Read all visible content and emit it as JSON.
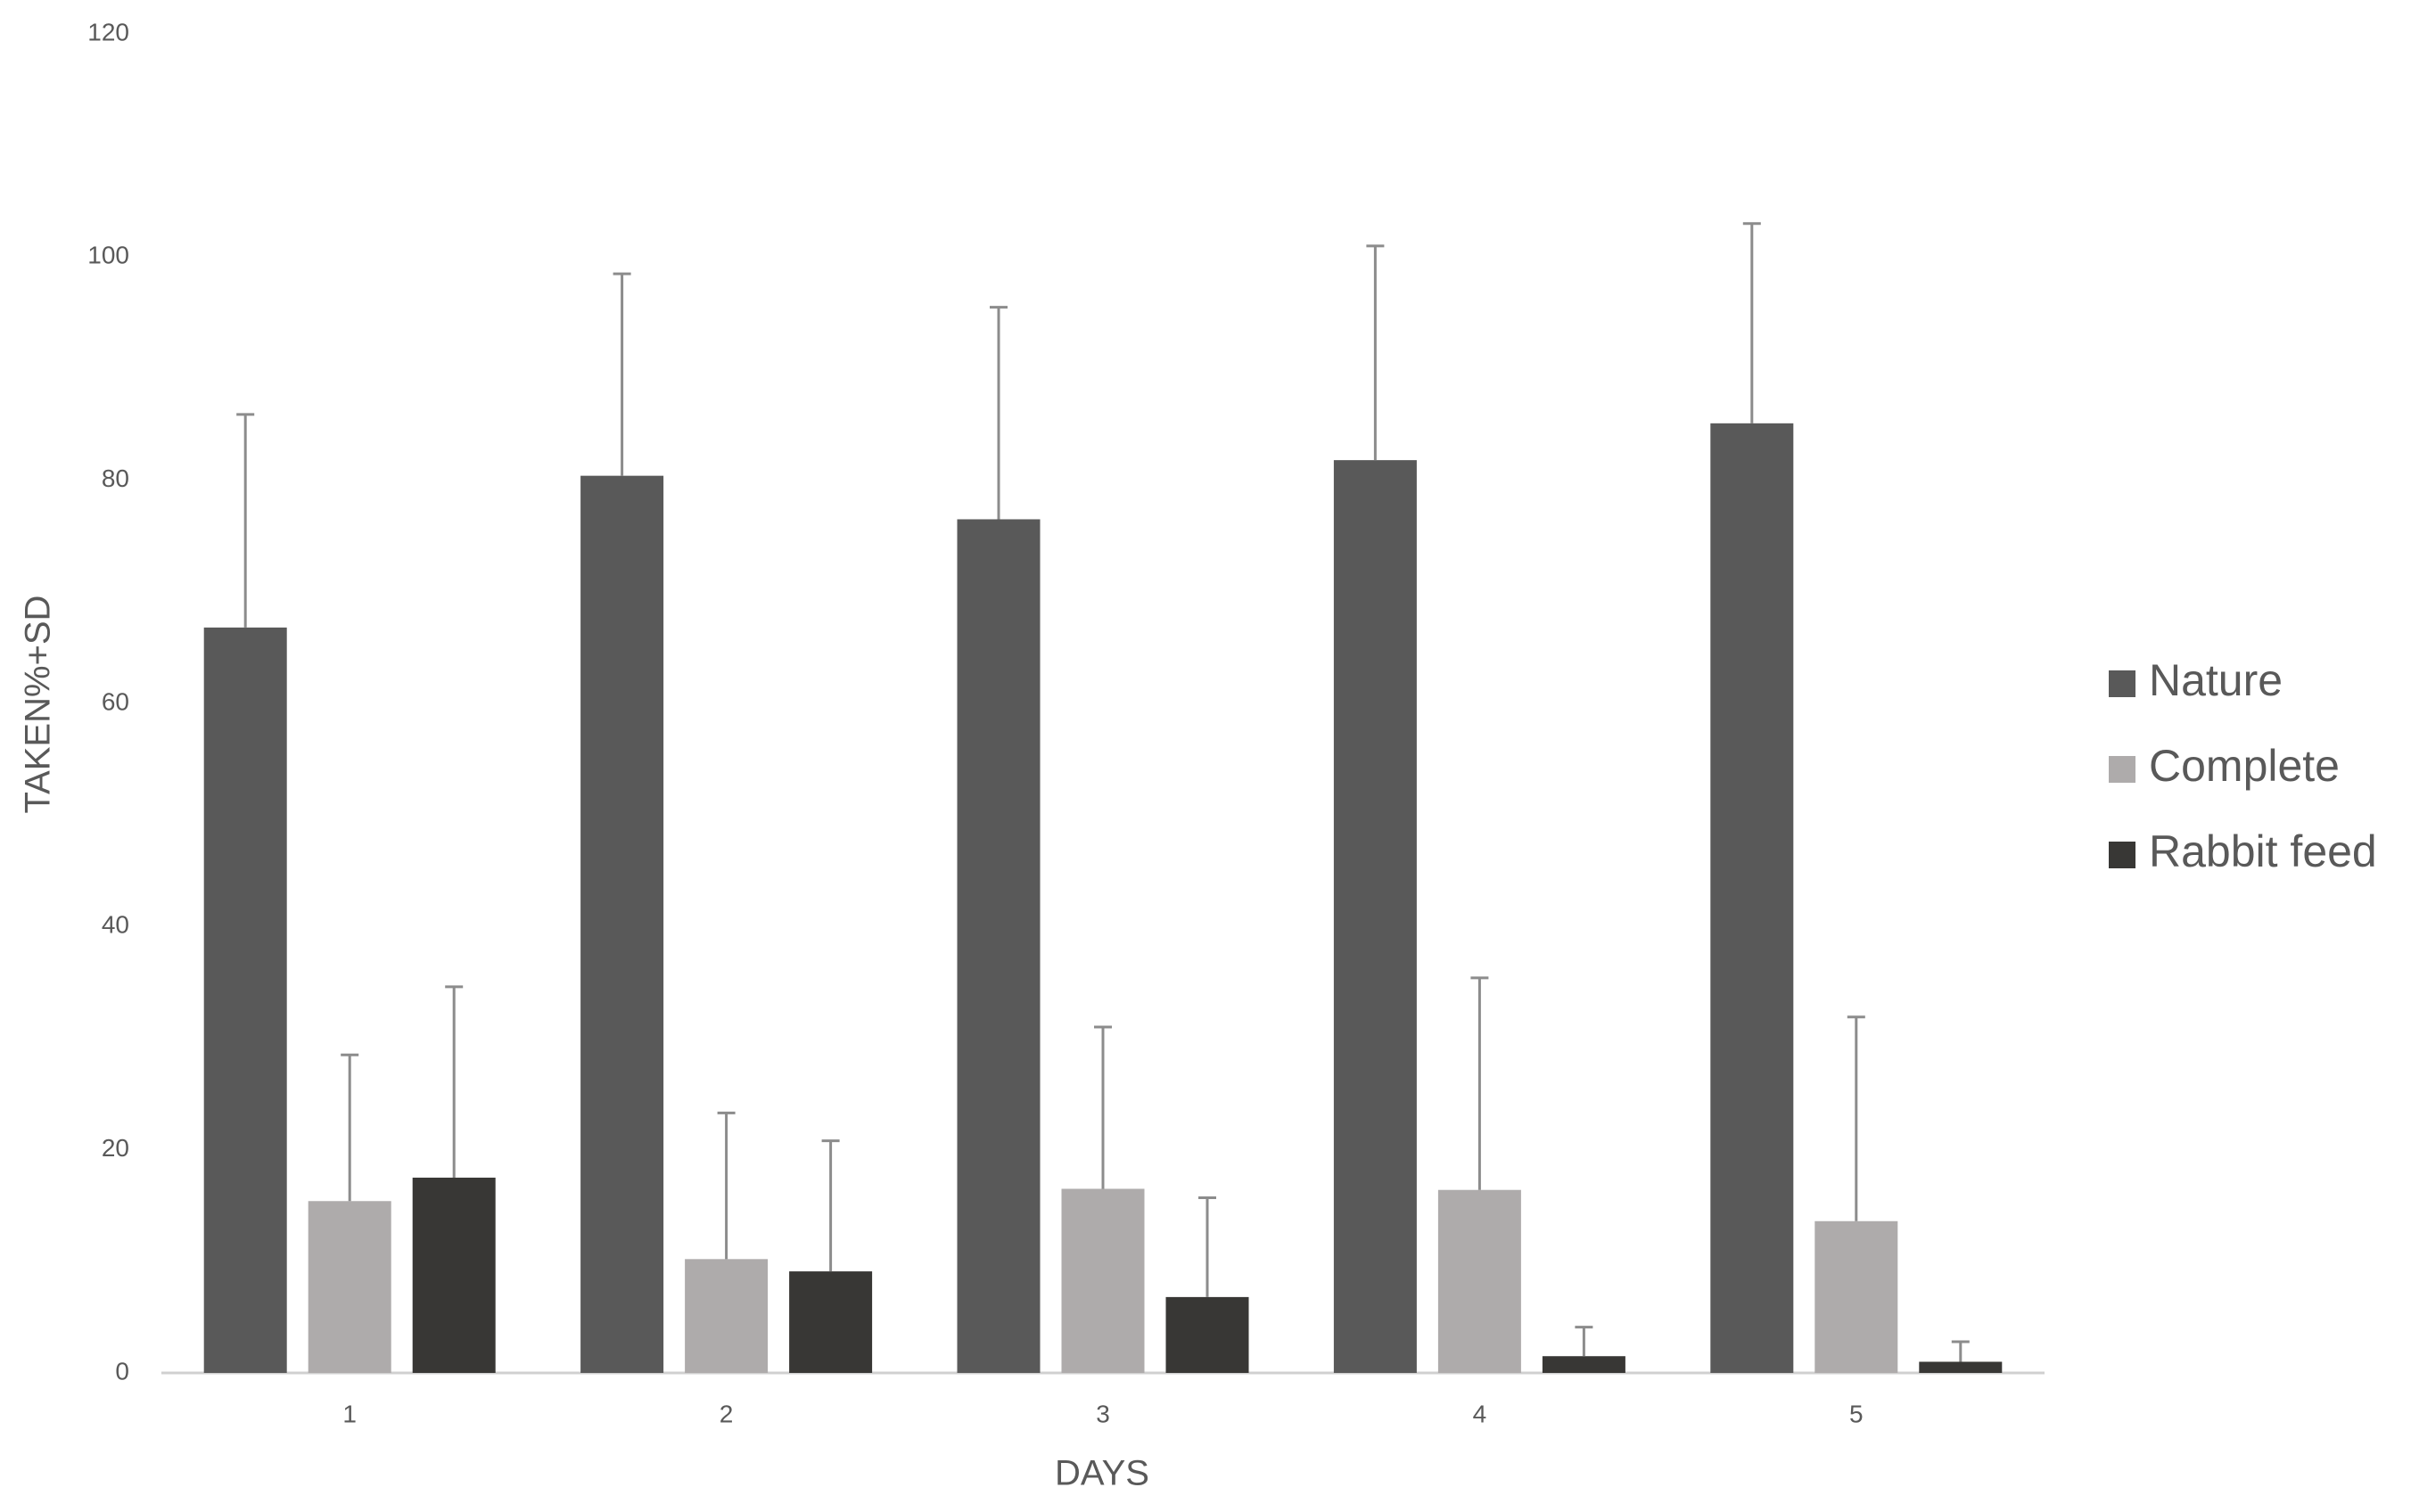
{
  "chart_data": {
    "type": "bar",
    "x_label": "DAYS",
    "y_label": "TAKEN%+SD",
    "categories": [
      "1",
      "2",
      "3",
      "4",
      "5"
    ],
    "series": [
      {
        "name": "Nature",
        "color": "#595959",
        "values": [
          66.8,
          80.4,
          76.5,
          81.8,
          85.1
        ],
        "errors": [
          19.1,
          18.1,
          19.0,
          19.2,
          17.9
        ]
      },
      {
        "name": "Complete",
        "color": "#aeabab",
        "values": [
          15.4,
          10.2,
          16.5,
          16.4,
          13.6
        ],
        "errors": [
          13.1,
          13.1,
          14.5,
          19.0,
          18.3
        ]
      },
      {
        "name": "Rabbit feed",
        "color": "#383735",
        "values": [
          17.5,
          9.1,
          6.8,
          1.5,
          1.0
        ],
        "errors": [
          17.1,
          11.7,
          8.9,
          2.6,
          1.8
        ]
      }
    ],
    "error_color": "#8c8c8c",
    "ylim": [
      0,
      120
    ],
    "yticks": [
      0,
      20,
      40,
      60,
      80,
      100,
      120
    ],
    "grid": false,
    "legend": "right"
  }
}
